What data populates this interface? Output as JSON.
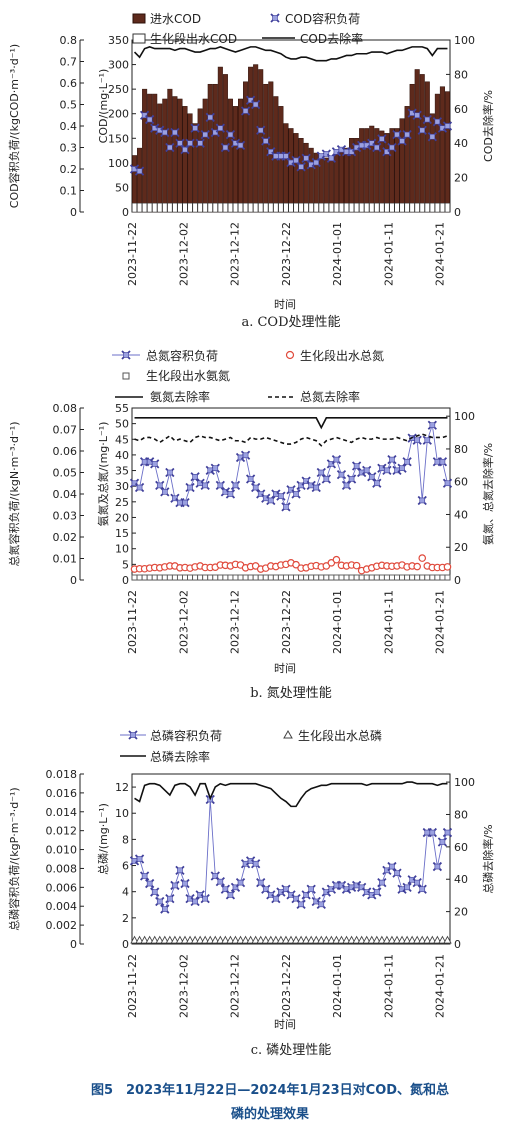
{
  "figure_caption": {
    "line1": "图5　2023年11月22日—2024年1月23日对COD、氮和总",
    "line2": "磷的处理效果"
  },
  "chart_data": [
    {
      "id": "a",
      "type": "bar",
      "subtitle": "a. COD处理性能",
      "xlabel": "时间",
      "ylabel_outer": "COD容积负荷/(kgCOD·m⁻³·d⁻¹)",
      "ylabel_inner": "COD/(mg·L⁻¹)",
      "ylabel_right": "COD去除率/%",
      "ylim_outer": [
        0,
        0.8
      ],
      "yticks_outer": [
        "0",
        "0.1",
        "0.2",
        "0.3",
        "0.4",
        "0.5",
        "0.6",
        "0.7",
        "0.8"
      ],
      "ylim_inner": [
        0,
        350
      ],
      "yticks_inner": [
        "0",
        "50",
        "100",
        "150",
        "200",
        "250",
        "300",
        "350"
      ],
      "ylim_right": [
        0,
        100
      ],
      "yticks_right": [
        "0",
        "20",
        "40",
        "60",
        "80",
        "100"
      ],
      "xticks": [
        "2023-11-22",
        "2023-12-02",
        "2023-12-12",
        "2023-12-22",
        "2024-01-01",
        "2024-01-11",
        "2024-01-21"
      ],
      "x_start": "2023-11-22",
      "x_end": "2024-01-23",
      "legend": [
        "进水COD",
        "COD容积负荷",
        "生化段出水COD",
        "COD去除率"
      ],
      "series": [
        {
          "name": "进水COD",
          "axis": "inner",
          "style": "bar",
          "values": [
            115,
            130,
            250,
            240,
            240,
            220,
            230,
            250,
            235,
            230,
            215,
            200,
            180,
            210,
            230,
            260,
            260,
            295,
            280,
            230,
            215,
            230,
            265,
            295,
            300,
            290,
            260,
            265,
            235,
            215,
            180,
            170,
            160,
            150,
            140,
            130,
            120,
            115,
            110,
            110,
            120,
            125,
            130,
            150,
            150,
            170,
            170,
            175,
            170,
            165,
            160,
            170,
            170,
            190,
            215,
            260,
            290,
            280,
            265,
            200,
            240,
            255,
            245
          ]
        },
        {
          "name": "COD容积负荷",
          "axis": "outer",
          "style": "marker",
          "values": [
            0.2,
            0.19,
            0.45,
            0.43,
            0.39,
            0.38,
            0.37,
            0.3,
            0.37,
            0.32,
            0.29,
            0.32,
            0.39,
            0.32,
            0.36,
            0.44,
            0.37,
            0.39,
            0.3,
            0.36,
            0.32,
            0.31,
            0.47,
            0.52,
            0.5,
            0.38,
            0.33,
            0.28,
            0.26,
            0.26,
            0.26,
            0.23,
            0.24,
            0.21,
            0.25,
            0.22,
            0.23,
            0.26,
            0.27,
            0.25,
            0.28,
            0.29,
            0.28,
            0.28,
            0.3,
            0.31,
            0.31,
            0.32,
            0.3,
            0.34,
            0.28,
            0.3,
            0.36,
            0.33,
            0.36,
            0.46,
            0.45,
            0.38,
            0.43,
            0.35,
            0.42,
            0.39,
            0.4
          ]
        },
        {
          "name": "生化段出水COD",
          "axis": "inner",
          "style": "bar",
          "values": [
            18,
            18,
            18,
            18,
            18,
            18,
            18,
            18,
            18,
            18,
            18,
            18,
            18,
            18,
            18,
            18,
            18,
            18,
            18,
            18,
            18,
            18,
            18,
            18,
            18,
            18,
            18,
            18,
            18,
            18,
            18,
            18,
            18,
            18,
            18,
            18,
            18,
            18,
            18,
            18,
            18,
            18,
            18,
            18,
            18,
            18,
            18,
            18,
            18,
            18,
            18,
            18,
            18,
            18,
            18,
            18,
            18,
            18,
            18,
            18,
            18,
            18,
            18
          ]
        },
        {
          "name": "COD去除率",
          "axis": "right",
          "style": "line",
          "values": [
            93,
            90,
            95,
            96,
            95,
            95,
            95,
            95,
            94,
            95,
            95,
            94,
            93,
            93,
            94,
            95,
            95,
            96,
            95,
            94,
            93,
            94,
            95,
            96,
            96,
            95,
            94,
            94,
            93,
            92,
            90,
            89,
            89,
            90,
            90,
            89,
            88,
            88,
            88,
            89,
            89,
            90,
            91,
            91,
            92,
            92,
            92,
            93,
            93,
            93,
            92,
            93,
            94,
            94,
            95,
            96,
            96,
            96,
            95,
            91,
            95,
            95,
            95
          ]
        }
      ]
    },
    {
      "id": "b",
      "type": "line",
      "subtitle": "b. 氮处理性能",
      "xlabel": "时间",
      "ylabel_outer": "总氮容积负荷/(kgN·m⁻³·d⁻¹)",
      "ylabel_inner": "氨氮及总氮/(mg·L⁻¹)",
      "ylabel_right": "氨氮、总氮去除率/%",
      "ylim_outer": [
        0,
        0.08
      ],
      "yticks_outer": [
        "0",
        "0.01",
        "0.02",
        "0.03",
        "0.04",
        "0.05",
        "0.06",
        "0.07",
        "0.08"
      ],
      "ylim_inner": [
        0,
        55
      ],
      "yticks_inner": [
        "0",
        "5",
        "10",
        "15",
        "20",
        "25",
        "30",
        "35",
        "40",
        "45",
        "50",
        "55"
      ],
      "ylim_right": [
        0,
        105
      ],
      "yticks_right": [
        "0",
        "20",
        "40",
        "60",
        "80",
        "100"
      ],
      "xticks": [
        "2023-11-22",
        "2023-12-02",
        "2023-12-12",
        "2023-12-22",
        "2024-01-01",
        "2024-01-11",
        "2024-01-21"
      ],
      "x_start": "2023-11-22",
      "x_end": "2024-01-23",
      "legend": [
        "总氮容积负荷",
        "生化段出水总氮",
        "生化段出水氨氮",
        "氨氮去除率",
        "总氮去除率"
      ],
      "series": [
        {
          "name": "总氮容积负荷",
          "axis": "outer",
          "style": "line-marker",
          "values": [
            0.045,
            0.043,
            0.055,
            0.055,
            0.054,
            0.044,
            0.041,
            0.05,
            0.038,
            0.036,
            0.036,
            0.043,
            0.048,
            0.045,
            0.044,
            0.051,
            0.052,
            0.044,
            0.041,
            0.04,
            0.044,
            0.057,
            0.058,
            0.047,
            0.043,
            0.04,
            0.038,
            0.037,
            0.04,
            0.039,
            0.034,
            0.042,
            0.04,
            0.044,
            0.046,
            0.044,
            0.043,
            0.05,
            0.047,
            0.054,
            0.056,
            0.049,
            0.044,
            0.047,
            0.053,
            0.05,
            0.051,
            0.048,
            0.045,
            0.052,
            0.051,
            0.056,
            0.051,
            0.052,
            0.055,
            0.066,
            0.065,
            0.037,
            0.065,
            0.072,
            0.055,
            0.055,
            0.045
          ]
        },
        {
          "name": "生化段出水总氮",
          "axis": "inner",
          "style": "marker-circle",
          "values": [
            3.5,
            3.6,
            3.6,
            3.8,
            4.0,
            3.9,
            4.2,
            4.5,
            4.5,
            3.9,
            4.0,
            3.8,
            4.2,
            4.5,
            4.0,
            4.0,
            4.1,
            4.8,
            4.7,
            4.5,
            5.0,
            4.8,
            3.9,
            4.3,
            4.5,
            3.5,
            3.8,
            4.5,
            4.3,
            4.8,
            5.0,
            5.5,
            4.9,
            3.8,
            3.9,
            4.4,
            4.6,
            4.2,
            4.5,
            5.5,
            6.5,
            4.7,
            4.5,
            4.8,
            4.6,
            3.0,
            3.5,
            3.9,
            4.4,
            4.7,
            4.5,
            4.4,
            4.5,
            4.8,
            4.2,
            4.5,
            4.3,
            7.0,
            4.5,
            4.0,
            4.0,
            4.0,
            4.2
          ]
        },
        {
          "name": "生化段出水氨氮",
          "axis": "inner",
          "style": "marker-square",
          "values": [
            0.8,
            0.8,
            0.8,
            0.8,
            0.8,
            0.8,
            0.8,
            0.8,
            0.8,
            0.8,
            0.8,
            0.8,
            0.8,
            0.8,
            0.8,
            0.8,
            0.8,
            0.8,
            0.8,
            0.8,
            0.8,
            0.8,
            0.8,
            0.8,
            0.8,
            0.8,
            0.8,
            0.8,
            0.8,
            0.8,
            0.8,
            0.8,
            0.8,
            0.8,
            0.8,
            0.8,
            0.8,
            0.8,
            0.8,
            0.8,
            0.8,
            0.8,
            0.8,
            0.8,
            0.8,
            0.8,
            0.8,
            0.8,
            0.8,
            0.8,
            0.8,
            0.8,
            0.8,
            0.8,
            0.8,
            0.8,
            0.8,
            0.8,
            0.8,
            0.8,
            0.8,
            0.8,
            0.8
          ]
        },
        {
          "name": "氨氮去除率",
          "axis": "right",
          "style": "line",
          "values": [
            99,
            99,
            99,
            99,
            99,
            99,
            99,
            99,
            99,
            99,
            99,
            99,
            99,
            99,
            99,
            99,
            99,
            99,
            99,
            99,
            99,
            99,
            99,
            99,
            99,
            99,
            99,
            99,
            99,
            99,
            99,
            99,
            99,
            99,
            99,
            99,
            99,
            93,
            99,
            99,
            99,
            99,
            99,
            99,
            99,
            99,
            99,
            99,
            99,
            99,
            99,
            99,
            99,
            99,
            99,
            99,
            99,
            99,
            99,
            99,
            99,
            99,
            99
          ]
        },
        {
          "name": "总氮去除率",
          "axis": "right",
          "style": "dashed",
          "values": [
            86,
            85,
            87,
            87,
            86,
            84,
            86,
            88,
            85,
            86,
            85,
            84,
            87,
            88,
            87,
            87,
            86,
            85,
            86,
            87,
            85,
            85,
            84,
            87,
            86,
            86,
            87,
            86,
            85,
            84,
            83,
            83,
            84,
            86,
            87,
            86,
            85,
            82,
            85,
            86,
            87,
            86,
            85,
            84,
            86,
            87,
            86,
            86,
            87,
            86,
            86,
            86,
            87,
            86,
            85,
            87,
            88,
            89,
            88,
            87,
            87,
            87,
            88
          ]
        }
      ]
    },
    {
      "id": "c",
      "type": "line",
      "subtitle": "c. 磷处理性能",
      "xlabel": "时间",
      "ylabel_outer": "总磷容积负荷/(kgP·m⁻³·d⁻¹)",
      "ylabel_inner": "总磷/(mg·L⁻¹)",
      "ylabel_right": "总磷去除率/%",
      "ylim_outer": [
        0,
        0.018
      ],
      "yticks_outer": [
        "0",
        "0.002",
        "0.004",
        "0.006",
        "0.008",
        "0.010",
        "0.012",
        "0.014",
        "0.016",
        "0.018"
      ],
      "ylim_inner": [
        0,
        13
      ],
      "yticks_inner": [
        "0",
        "2",
        "4",
        "6",
        "8",
        "10",
        "12"
      ],
      "ylim_right": [
        0,
        105
      ],
      "yticks_right": [
        "0",
        "20",
        "40",
        "60",
        "80",
        "100"
      ],
      "xticks": [
        "2023-11-22",
        "2023-12-02",
        "2023-12-12",
        "2023-12-22",
        "2024-01-01",
        "2024-01-11",
        "2024-01-21"
      ],
      "x_start": "2023-11-22",
      "x_end": "2024-01-23",
      "legend": [
        "总磷容积负荷",
        "生化段出水总磷",
        "总磷去除率"
      ],
      "series": [
        {
          "name": "总磷容积负荷",
          "axis": "outer",
          "style": "line-marker",
          "values": [
            0.0088,
            0.009,
            0.0072,
            0.0064,
            0.0055,
            0.0045,
            0.0037,
            0.0048,
            0.0062,
            0.0078,
            0.0064,
            0.0048,
            0.0045,
            0.0052,
            0.0048,
            0.0153,
            0.0072,
            0.0066,
            0.0058,
            0.0052,
            0.006,
            0.0065,
            0.0085,
            0.0088,
            0.0085,
            0.0065,
            0.0058,
            0.0052,
            0.0048,
            0.0055,
            0.0058,
            0.0052,
            0.0048,
            0.0042,
            0.0052,
            0.0058,
            0.0045,
            0.0042,
            0.0055,
            0.0058,
            0.0062,
            0.0062,
            0.0058,
            0.006,
            0.0062,
            0.006,
            0.0055,
            0.0052,
            0.0055,
            0.0065,
            0.0078,
            0.0082,
            0.0075,
            0.0058,
            0.006,
            0.0068,
            0.0065,
            0.0058,
            0.0118,
            0.0118,
            0.0082,
            0.0108,
            0.0118
          ]
        },
        {
          "name": "生化段出水总磷",
          "axis": "inner",
          "style": "marker-triangle",
          "values": [
            0.3,
            0.3,
            0.3,
            0.3,
            0.3,
            0.3,
            0.3,
            0.3,
            0.3,
            0.3,
            0.3,
            0.3,
            0.3,
            0.3,
            0.3,
            0.3,
            0.3,
            0.3,
            0.3,
            0.3,
            0.3,
            0.3,
            0.3,
            0.3,
            0.3,
            0.3,
            0.3,
            0.3,
            0.3,
            0.3,
            0.3,
            0.3,
            0.3,
            0.3,
            0.3,
            0.3,
            0.3,
            0.3,
            0.3,
            0.3,
            0.3,
            0.3,
            0.3,
            0.3,
            0.3,
            0.3,
            0.3,
            0.3,
            0.3,
            0.3,
            0.3,
            0.3,
            0.3,
            0.3,
            0.3,
            0.3,
            0.3,
            0.3,
            0.3,
            0.3,
            0.3,
            0.3,
            0.3
          ]
        },
        {
          "name": "总磷去除率",
          "axis": "right",
          "style": "line",
          "values": [
            90,
            88,
            98,
            99,
            99,
            98,
            95,
            92,
            98,
            99,
            99,
            97,
            92,
            99,
            99,
            90,
            97,
            99,
            98,
            99,
            99,
            99,
            99,
            99,
            99,
            98,
            97,
            96,
            93,
            90,
            88,
            85,
            85,
            90,
            94,
            96,
            97,
            98,
            98,
            99,
            99,
            99,
            99,
            99,
            99,
            99,
            98,
            99,
            99,
            99,
            99,
            99,
            99,
            99,
            100,
            100,
            99,
            99,
            99,
            99,
            98,
            99,
            99
          ]
        }
      ]
    }
  ]
}
